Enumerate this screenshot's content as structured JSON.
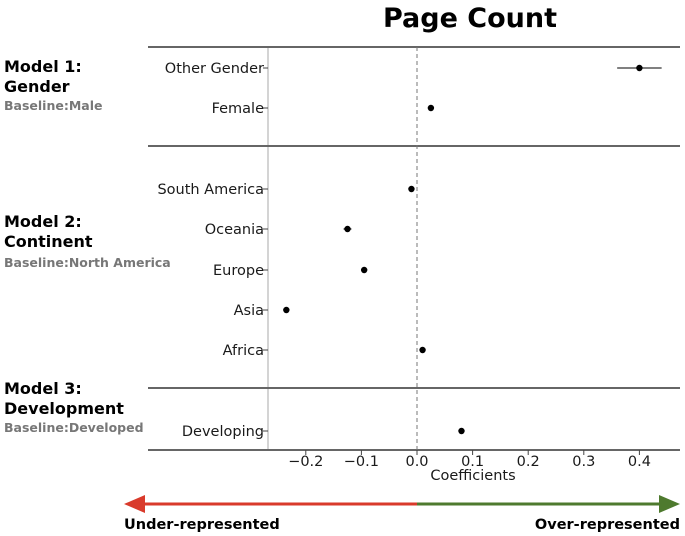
{
  "chart_data": {
    "type": "scatter",
    "title": "Page Count",
    "xlabel": "Coefficients",
    "xlim": [
      -0.27,
      0.45
    ],
    "xticks": [
      "−0.2",
      "−0.1",
      "0.0",
      "0.1",
      "0.2",
      "0.3",
      "0.4"
    ],
    "xtick_values": [
      -0.2,
      -0.1,
      0.0,
      0.1,
      0.2,
      0.3,
      0.4
    ],
    "zero_line": "dashed",
    "point_color": "#000000",
    "groups": [
      {
        "model": [
          "Model 1:",
          "Gender"
        ],
        "baseline": "Baseline:Male",
        "points": [
          {
            "label": "Other Gender",
            "value": 0.4,
            "ci": [
              0.36,
              0.44
            ]
          },
          {
            "label": "Female",
            "value": 0.025,
            "ci": [
              0.02,
              0.03
            ]
          }
        ]
      },
      {
        "model": [
          "Model 2:",
          "Continent"
        ],
        "baseline": "Baseline:North America",
        "points": [
          {
            "label": "South America",
            "value": -0.01,
            "ci": [
              -0.015,
              -0.005
            ]
          },
          {
            "label": "Oceania",
            "value": -0.125,
            "ci": [
              -0.132,
              -0.118
            ]
          },
          {
            "label": "Europe",
            "value": -0.095,
            "ci": [
              -0.099,
              -0.091
            ]
          },
          {
            "label": "Asia",
            "value": -0.235,
            "ci": [
              -0.239,
              -0.231
            ]
          },
          {
            "label": "Africa",
            "value": 0.01,
            "ci": [
              0.006,
              0.014
            ]
          }
        ]
      },
      {
        "model": [
          "Model 3:",
          "Development"
        ],
        "baseline": "Baseline:Developed",
        "points": [
          {
            "label": "Developing",
            "value": 0.08,
            "ci": [
              0.076,
              0.084
            ]
          }
        ]
      }
    ],
    "arrows": {
      "left_label": "Under-represented",
      "right_label": "Over-represented",
      "left_color": "#d93a2b",
      "right_color": "#4e7a2e"
    }
  }
}
